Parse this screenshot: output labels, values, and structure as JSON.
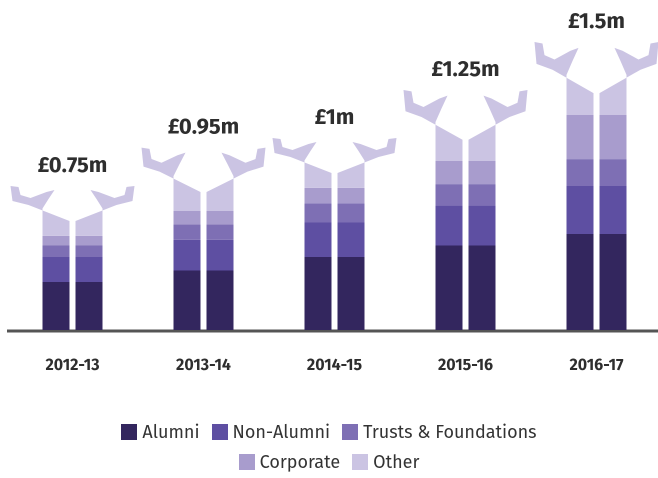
{
  "chart_data": {
    "type": "pictorial-stacked-bar",
    "categories": [
      "2012-13",
      "2013-14",
      "2014-15",
      "2015-16",
      "2016-17"
    ],
    "series": [
      {
        "name": "Alumni",
        "color": "#33265e",
        "values": [
          0.25,
          0.31,
          0.38,
          0.44,
          0.5
        ]
      },
      {
        "name": "Non-Alumni",
        "color": "#5e4fa2",
        "values": [
          0.13,
          0.16,
          0.18,
          0.21,
          0.25
        ]
      },
      {
        "name": "Trusts & Foundations",
        "color": "#7e6fb4",
        "values": [
          0.06,
          0.08,
          0.1,
          0.11,
          0.14
        ]
      },
      {
        "name": "Corporate",
        "color": "#a89ccd",
        "values": [
          0.05,
          0.07,
          0.08,
          0.12,
          0.23
        ]
      },
      {
        "name": "Other",
        "color": "#cbc4e3",
        "values": [
          0.26,
          0.33,
          0.26,
          0.37,
          0.38
        ]
      }
    ],
    "totals": {
      "values": [
        0.75,
        0.95,
        1,
        1.25,
        1.5
      ],
      "value_labels": [
        "£0.75m",
        "£0.95m",
        "£1m",
        "£1.25m",
        "£1.5m"
      ]
    },
    "legend": "bottom"
  }
}
